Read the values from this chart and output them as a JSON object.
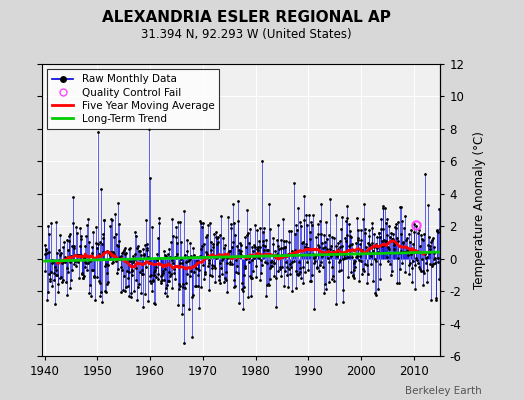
{
  "title": "ALEXANDRIA ESLER REGIONAL AP",
  "subtitle": "31.394 N, 92.293 W (United States)",
  "ylabel": "Temperature Anomaly (°C)",
  "credit": "Berkeley Earth",
  "year_start": 1940,
  "year_end": 2014,
  "ylim": [
    -6,
    12
  ],
  "yticks": [
    -6,
    -4,
    -2,
    0,
    2,
    4,
    6,
    8,
    10,
    12
  ],
  "xticks": [
    1940,
    1950,
    1960,
    1970,
    1980,
    1990,
    2000,
    2010
  ],
  "background_color": "#d8d8d8",
  "plot_bg_color": "#f0f0f0",
  "raw_color": "#0000dd",
  "ma_color": "#ff0000",
  "trend_color": "#00cc00",
  "qc_color": "#ff44ff",
  "grid_color": "#ffffff"
}
